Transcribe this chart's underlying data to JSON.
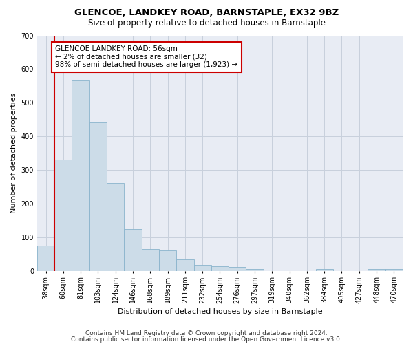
{
  "title": "GLENCOE, LANDKEY ROAD, BARNSTAPLE, EX32 9BZ",
  "subtitle": "Size of property relative to detached houses in Barnstaple",
  "xlabel": "Distribution of detached houses by size in Barnstaple",
  "ylabel": "Number of detached properties",
  "categories": [
    "38sqm",
    "60sqm",
    "81sqm",
    "103sqm",
    "124sqm",
    "146sqm",
    "168sqm",
    "189sqm",
    "211sqm",
    "232sqm",
    "254sqm",
    "276sqm",
    "297sqm",
    "319sqm",
    "340sqm",
    "362sqm",
    "384sqm",
    "405sqm",
    "427sqm",
    "448sqm",
    "470sqm"
  ],
  "values": [
    75,
    330,
    565,
    442,
    260,
    123,
    65,
    60,
    33,
    17,
    14,
    12,
    5,
    0,
    0,
    0,
    5,
    0,
    0,
    5,
    5
  ],
  "bar_color": "#ccdce8",
  "bar_edge_color": "#8ab4cc",
  "vline_color": "#cc0000",
  "vline_x": 0.5,
  "annotation_text": "GLENCOE LANDKEY ROAD: 56sqm\n← 2% of detached houses are smaller (32)\n98% of semi-detached houses are larger (1,923) →",
  "annotation_box_color": "#ffffff",
  "annotation_box_edge_color": "#cc0000",
  "ylim": [
    0,
    700
  ],
  "yticks": [
    0,
    100,
    200,
    300,
    400,
    500,
    600,
    700
  ],
  "grid_color": "#c8d0dc",
  "background_color": "#e8ecf4",
  "footer1": "Contains HM Land Registry data © Crown copyright and database right 2024.",
  "footer2": "Contains public sector information licensed under the Open Government Licence v3.0.",
  "title_fontsize": 9.5,
  "subtitle_fontsize": 8.5,
  "xlabel_fontsize": 8,
  "ylabel_fontsize": 8,
  "tick_fontsize": 7,
  "annotation_fontsize": 7.5,
  "footer_fontsize": 6.5
}
